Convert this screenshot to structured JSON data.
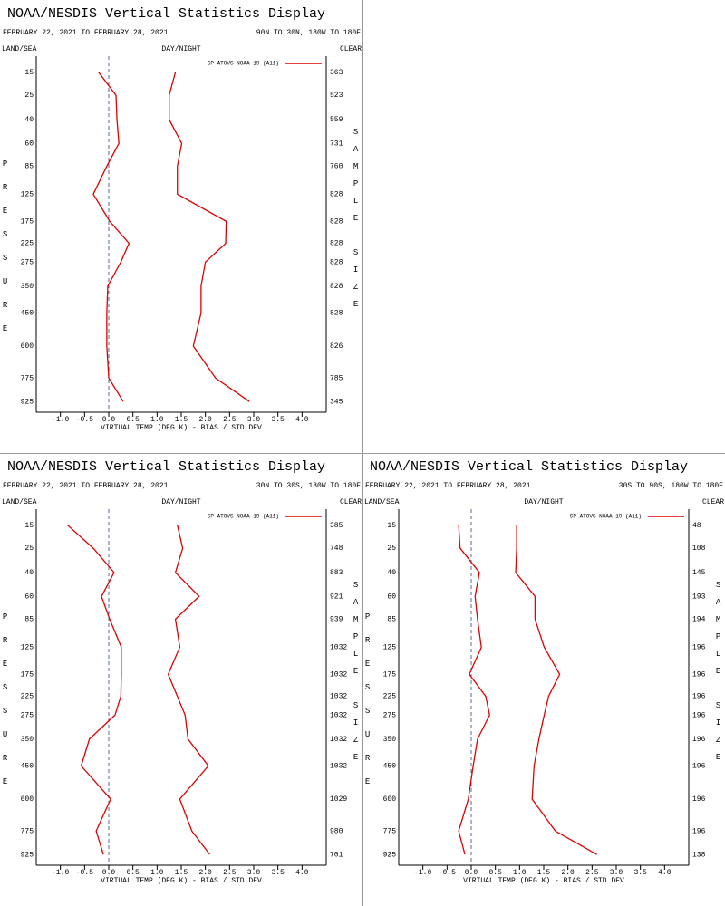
{
  "chart_data": [
    {
      "type": "line",
      "title": "NOAA/NESDIS Vertical Statistics Display",
      "date_range": "FEBRUARY 22, 2021 TO FEBRUARY 28, 2021",
      "region": "90N TO 30N, 180W TO 180E",
      "land_sea": "LAND/SEA",
      "day_night": "DAY/NIGHT",
      "clear": "CLEAR",
      "y_label": "PRESSURE",
      "y2_label": "SAMPLE SIZE",
      "x_label": "VIRTUAL TEMP (DEG K) - BIAS / STD DEV",
      "y": [
        15,
        25,
        40,
        60,
        85,
        125,
        175,
        225,
        275,
        350,
        450,
        600,
        775,
        925
      ],
      "sample_sizes": [
        363,
        523,
        559,
        731,
        760,
        828,
        828,
        828,
        828,
        828,
        828,
        826,
        785,
        345
      ],
      "series": [
        {
          "name": "SP ATOVS NOAA-19 (A11)",
          "color": "#e00000",
          "values": [
            -0.21,
            0.15,
            0.17,
            0.21,
            -0.04,
            -0.32,
            0.02,
            0.42,
            0.25,
            -0.02,
            -0.04,
            -0.04,
            0,
            0.3
          ],
          "std_dev": [
            1.38,
            1.25,
            1.25,
            1.51,
            1.42,
            1.42,
            2.43,
            2.42,
            2.0,
            1.91,
            1.91,
            1.75,
            2.21,
            2.91
          ]
        }
      ],
      "xlim": [
        -1.5,
        4.5
      ],
      "xticks": [
        {
          "value": -1,
          "label": "-1.0"
        },
        -0.5,
        {
          "value": 0,
          "label": "0.0"
        },
        0.5,
        {
          "value": 1,
          "label": "1.0"
        },
        1.5,
        {
          "value": 2,
          "label": "2.0"
        },
        2.5,
        {
          "value": 3,
          "label": "3.0"
        },
        3.5,
        {
          "value": 4,
          "label": "4.0"
        }
      ],
      "ylim": [
        10,
        1000
      ],
      "yticks": [
        15,
        25,
        40,
        60,
        85,
        125,
        175,
        225,
        275,
        350,
        450,
        600,
        775,
        925
      ],
      "zero_line": true
    },
    {
      "type": "line",
      "title": "NOAA/NESDIS Vertical Statistics Display",
      "date_range": "FEBRUARY 22, 2021 TO FEBRUARY 28, 2021",
      "region": "30N TO 30S, 180W TO 180E",
      "land_sea": "LAND/SEA",
      "day_night": "DAY/NIGHT",
      "clear": "CLEAR",
      "y_label": "PRESSURE",
      "y2_label": "SAMPLE SIZE",
      "x_label": "VIRTUAL TEMP (DEG K) - BIAS / STD DEV",
      "y": [
        15,
        25,
        40,
        60,
        85,
        125,
        175,
        225,
        275,
        350,
        450,
        600,
        775,
        925
      ],
      "sample_sizes": [
        385,
        748,
        883,
        921,
        939,
        1032,
        1032,
        1032,
        1032,
        1032,
        1032,
        1029,
        980,
        701
      ],
      "series": [
        {
          "name": "SP ATOVS NOAA-19 (A11)",
          "color": "#e00000",
          "values": [
            -0.85,
            -0.32,
            0.11,
            -0.15,
            0.02,
            0.26,
            0.26,
            0.25,
            0.13,
            -0.4,
            -0.57,
            0.04,
            -0.26,
            -0.11
          ],
          "std_dev": [
            1.42,
            1.53,
            1.38,
            1.87,
            1.38,
            1.47,
            1.23,
            1.42,
            1.58,
            1.64,
            2.06,
            1.47,
            1.72,
            2.09
          ]
        }
      ],
      "xlim": [
        -1.5,
        4.5
      ],
      "xticks": [
        {
          "value": -1,
          "label": "-1.0"
        },
        -0.5,
        {
          "value": 0,
          "label": "0.0"
        },
        0.5,
        {
          "value": 1,
          "label": "1.0"
        },
        1.5,
        {
          "value": 2,
          "label": "2.0"
        },
        2.5,
        {
          "value": 3,
          "label": "3.0"
        },
        3.5,
        {
          "value": 4,
          "label": "4.0"
        }
      ],
      "ylim": [
        10,
        1000
      ],
      "yticks": [
        15,
        25,
        40,
        60,
        85,
        125,
        175,
        225,
        275,
        350,
        450,
        600,
        775,
        925
      ],
      "zero_line": true
    },
    {
      "type": "line",
      "title": "NOAA/NESDIS Vertical Statistics Display",
      "date_range": "FEBRUARY 22, 2021 TO FEBRUARY 28, 2021",
      "region": "30S TO 90S, 180W TO 180E",
      "land_sea": "LAND/SEA",
      "day_night": "DAY/NIGHT",
      "clear": "CLEAR",
      "y_label": "PRESSURE",
      "y2_label": "SAMPLE SIZE",
      "x_label": "VIRTUAL TEMP (DEG K) - BIAS / STD DEV",
      "y": [
        15,
        25,
        40,
        60,
        85,
        125,
        175,
        225,
        275,
        350,
        450,
        600,
        775,
        925
      ],
      "sample_sizes": [
        48,
        108,
        145,
        193,
        194,
        196,
        196,
        196,
        196,
        196,
        196,
        196,
        196,
        138
      ],
      "series": [
        {
          "name": "SP ATOVS NOAA-19 (A11)",
          "color": "#e00000",
          "values": [
            -0.26,
            -0.23,
            0.17,
            0.08,
            0.13,
            0.21,
            -0.04,
            0.3,
            0.38,
            0.13,
            0.04,
            -0.06,
            -0.26,
            -0.13
          ],
          "std_dev": [
            0.94,
            0.94,
            0.92,
            1.32,
            1.32,
            1.51,
            1.83,
            1.6,
            1.51,
            1.4,
            1.3,
            1.26,
            1.74,
            2.6
          ]
        }
      ],
      "xlim": [
        -1.5,
        4.5
      ],
      "xticks": [
        {
          "value": -1,
          "label": "-1.0"
        },
        -0.5,
        {
          "value": 0,
          "label": "0.0"
        },
        0.5,
        {
          "value": 1,
          "label": "1.0"
        },
        1.5,
        {
          "value": 2,
          "label": "2.0"
        },
        2.5,
        {
          "value": 3,
          "label": "3.0"
        },
        3.5,
        {
          "value": 4,
          "label": "4.0"
        }
      ],
      "ylim": [
        10,
        1000
      ],
      "yticks": [
        15,
        25,
        40,
        60,
        85,
        125,
        175,
        225,
        275,
        350,
        450,
        600,
        775,
        925
      ],
      "zero_line": true
    }
  ]
}
